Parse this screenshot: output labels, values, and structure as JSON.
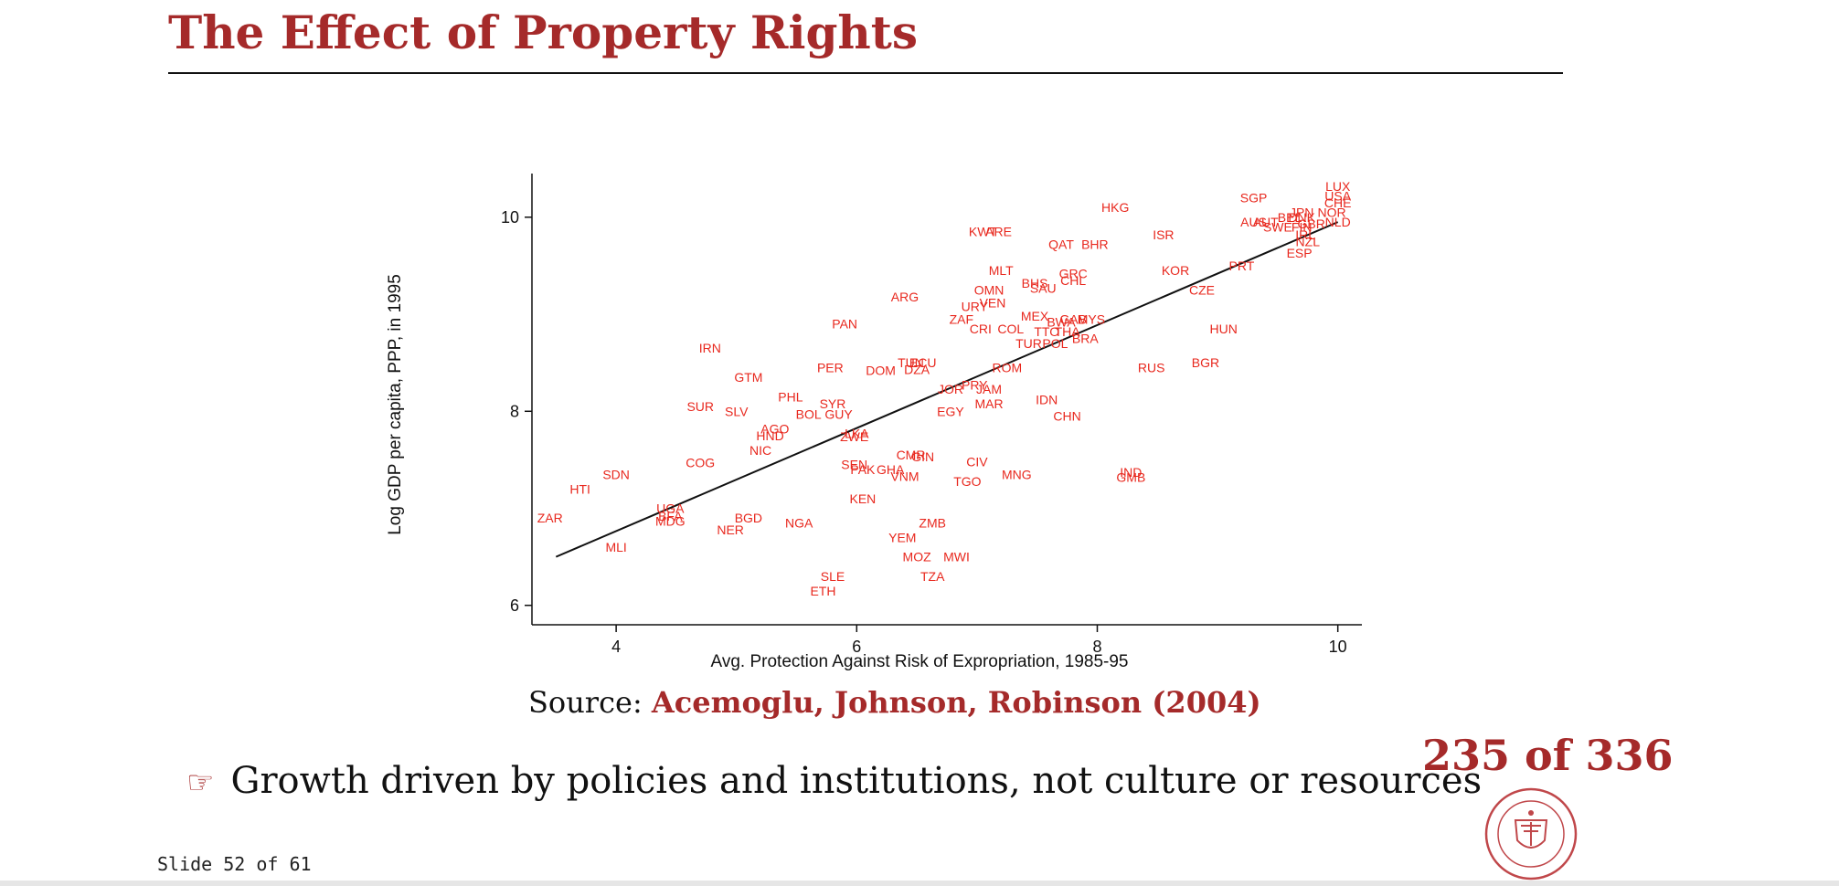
{
  "slide": {
    "title": "The Effect of Property Rights",
    "source_prefix": "Source: ",
    "source_citation": "Acemoglu, Johnson, Robinson (2004)",
    "bullet_symbol": "☞",
    "bullet_text": "Growth driven by policies and institutions, not culture or resources",
    "page_counter": "235 of 336",
    "slide_number": "Slide 52 of 61",
    "seal_icon": "carnegie-mellon-seal-icon",
    "colors": {
      "accent": "#a52a2a",
      "points": "#e8281e"
    }
  },
  "chart_data": {
    "type": "scatter",
    "xlabel": "Avg. Protection Against Risk of Expropriation, 1985-95",
    "ylabel": "Log GDP per capita, PPP, in 1995",
    "xlim": [
      3.3,
      10.2
    ],
    "ylim": [
      5.8,
      10.45
    ],
    "x_ticks": [
      4,
      6,
      8,
      10
    ],
    "y_ticks": [
      6,
      8,
      10
    ],
    "fit_line": {
      "x": [
        3.5,
        10.0
      ],
      "y": [
        6.5,
        9.95
      ]
    },
    "points": [
      {
        "label": "LUX",
        "x": 10.0,
        "y": 10.32
      },
      {
        "label": "USA",
        "x": 10.0,
        "y": 10.22
      },
      {
        "label": "CHE",
        "x": 10.0,
        "y": 10.15
      },
      {
        "label": "NOR",
        "x": 9.95,
        "y": 10.05
      },
      {
        "label": "NLD",
        "x": 10.0,
        "y": 9.95
      },
      {
        "label": "JPN",
        "x": 9.7,
        "y": 10.05
      },
      {
        "label": "DNK",
        "x": 9.7,
        "y": 10.0
      },
      {
        "label": "BEL",
        "x": 9.6,
        "y": 10.0
      },
      {
        "label": "GBR",
        "x": 9.78,
        "y": 9.93
      },
      {
        "label": "AUS",
        "x": 9.3,
        "y": 9.95
      },
      {
        "label": "SWE",
        "x": 9.5,
        "y": 9.9
      },
      {
        "label": "FIN",
        "x": 9.7,
        "y": 9.9
      },
      {
        "label": "IRL",
        "x": 9.73,
        "y": 9.82
      },
      {
        "label": "NZL",
        "x": 9.75,
        "y": 9.75
      },
      {
        "label": "ESP",
        "x": 9.68,
        "y": 9.63
      },
      {
        "label": "SGP",
        "x": 9.3,
        "y": 10.2
      },
      {
        "label": "AUT",
        "x": 9.4,
        "y": 9.95
      },
      {
        "label": "HKG",
        "x": 8.15,
        "y": 10.1
      },
      {
        "label": "ISR",
        "x": 8.55,
        "y": 9.82
      },
      {
        "label": "KWT",
        "x": 7.05,
        "y": 9.85
      },
      {
        "label": "ARE",
        "x": 7.18,
        "y": 9.85
      },
      {
        "label": "QAT",
        "x": 7.7,
        "y": 9.72
      },
      {
        "label": "BHR",
        "x": 7.98,
        "y": 9.72
      },
      {
        "label": "PRT",
        "x": 9.2,
        "y": 9.5
      },
      {
        "label": "KOR",
        "x": 8.65,
        "y": 9.45
      },
      {
        "label": "CZE",
        "x": 8.87,
        "y": 9.25
      },
      {
        "label": "MLT",
        "x": 7.2,
        "y": 9.45
      },
      {
        "label": "GRC",
        "x": 7.8,
        "y": 9.42
      },
      {
        "label": "CHL",
        "x": 7.8,
        "y": 9.35
      },
      {
        "label": "BHS",
        "x": 7.48,
        "y": 9.32
      },
      {
        "label": "SAU",
        "x": 7.55,
        "y": 9.27
      },
      {
        "label": "OMN",
        "x": 7.1,
        "y": 9.25
      },
      {
        "label": "ARG",
        "x": 6.4,
        "y": 9.18
      },
      {
        "label": "URY",
        "x": 6.98,
        "y": 9.08
      },
      {
        "label": "VEN",
        "x": 7.13,
        "y": 9.12
      },
      {
        "label": "MEX",
        "x": 7.48,
        "y": 8.98
      },
      {
        "label": "GAB",
        "x": 7.8,
        "y": 8.95
      },
      {
        "label": "MYS",
        "x": 7.95,
        "y": 8.95
      },
      {
        "label": "BWA",
        "x": 7.7,
        "y": 8.92
      },
      {
        "label": "ZAF",
        "x": 6.87,
        "y": 8.95
      },
      {
        "label": "HUN",
        "x": 9.05,
        "y": 8.85
      },
      {
        "label": "PAN",
        "x": 5.9,
        "y": 8.9
      },
      {
        "label": "CRI",
        "x": 7.03,
        "y": 8.85
      },
      {
        "label": "COL",
        "x": 7.28,
        "y": 8.85
      },
      {
        "label": "TTO",
        "x": 7.58,
        "y": 8.82
      },
      {
        "label": "THA",
        "x": 7.75,
        "y": 8.82
      },
      {
        "label": "BRA",
        "x": 7.9,
        "y": 8.75
      },
      {
        "label": "TUR",
        "x": 7.43,
        "y": 8.7
      },
      {
        "label": "POL",
        "x": 7.65,
        "y": 8.7
      },
      {
        "label": "IRN",
        "x": 4.78,
        "y": 8.65
      },
      {
        "label": "BGR",
        "x": 8.9,
        "y": 8.5
      },
      {
        "label": "RUS",
        "x": 8.45,
        "y": 8.45
      },
      {
        "label": "TUN",
        "x": 6.45,
        "y": 8.5
      },
      {
        "label": "ECU",
        "x": 6.55,
        "y": 8.5
      },
      {
        "label": "DZA",
        "x": 6.5,
        "y": 8.43
      },
      {
        "label": "ROM",
        "x": 7.25,
        "y": 8.45
      },
      {
        "label": "PER",
        "x": 5.78,
        "y": 8.45
      },
      {
        "label": "DOM",
        "x": 6.2,
        "y": 8.42
      },
      {
        "label": "GTM",
        "x": 5.1,
        "y": 8.35
      },
      {
        "label": "JOR",
        "x": 6.78,
        "y": 8.23
      },
      {
        "label": "PRY",
        "x": 6.98,
        "y": 8.27
      },
      {
        "label": "JAM",
        "x": 7.1,
        "y": 8.23
      },
      {
        "label": "PHL",
        "x": 5.45,
        "y": 8.15
      },
      {
        "label": "MAR",
        "x": 7.1,
        "y": 8.08
      },
      {
        "label": "IDN",
        "x": 7.58,
        "y": 8.12
      },
      {
        "label": "SUR",
        "x": 4.7,
        "y": 8.05
      },
      {
        "label": "SYR",
        "x": 5.8,
        "y": 8.08
      },
      {
        "label": "SLV",
        "x": 5.0,
        "y": 8.0
      },
      {
        "label": "EGY",
        "x": 6.78,
        "y": 8.0
      },
      {
        "label": "BOL",
        "x": 5.6,
        "y": 7.97
      },
      {
        "label": "GUY",
        "x": 5.85,
        "y": 7.97
      },
      {
        "label": "CHN",
        "x": 7.75,
        "y": 7.95
      },
      {
        "label": "AGO",
        "x": 5.32,
        "y": 7.82
      },
      {
        "label": "HND",
        "x": 5.28,
        "y": 7.75
      },
      {
        "label": "LKA",
        "x": 6.0,
        "y": 7.77
      },
      {
        "label": "ZWE",
        "x": 5.98,
        "y": 7.74
      },
      {
        "label": "NIC",
        "x": 5.2,
        "y": 7.6
      },
      {
        "label": "CMR",
        "x": 6.45,
        "y": 7.55
      },
      {
        "label": "GIN",
        "x": 6.55,
        "y": 7.53
      },
      {
        "label": "CIV",
        "x": 7.0,
        "y": 7.48
      },
      {
        "label": "COG",
        "x": 4.7,
        "y": 7.47
      },
      {
        "label": "SEN",
        "x": 5.98,
        "y": 7.45
      },
      {
        "label": "PAK",
        "x": 6.05,
        "y": 7.4
      },
      {
        "label": "GHA",
        "x": 6.28,
        "y": 7.4
      },
      {
        "label": "SDN",
        "x": 4.0,
        "y": 7.35
      },
      {
        "label": "VNM",
        "x": 6.4,
        "y": 7.33
      },
      {
        "label": "MNG",
        "x": 7.33,
        "y": 7.35
      },
      {
        "label": "IND",
        "x": 8.28,
        "y": 7.37
      },
      {
        "label": "GMB",
        "x": 8.28,
        "y": 7.32
      },
      {
        "label": "TGO",
        "x": 6.92,
        "y": 7.28
      },
      {
        "label": "HTI",
        "x": 3.7,
        "y": 7.2
      },
      {
        "label": "KEN",
        "x": 6.05,
        "y": 7.1
      },
      {
        "label": "UGA",
        "x": 4.45,
        "y": 7.0
      },
      {
        "label": "BFA",
        "x": 4.45,
        "y": 6.92
      },
      {
        "label": "MDG",
        "x": 4.45,
        "y": 6.87
      },
      {
        "label": "BGD",
        "x": 5.1,
        "y": 6.9
      },
      {
        "label": "ZAR",
        "x": 3.45,
        "y": 6.9
      },
      {
        "label": "NGA",
        "x": 5.52,
        "y": 6.85
      },
      {
        "label": "ZMB",
        "x": 6.63,
        "y": 6.85
      },
      {
        "label": "NER",
        "x": 4.95,
        "y": 6.78
      },
      {
        "label": "YEM",
        "x": 6.38,
        "y": 6.7
      },
      {
        "label": "MLI",
        "x": 4.0,
        "y": 6.6
      },
      {
        "label": "MOZ",
        "x": 6.5,
        "y": 6.5
      },
      {
        "label": "MWI",
        "x": 6.83,
        "y": 6.5
      },
      {
        "label": "SLE",
        "x": 5.8,
        "y": 6.3
      },
      {
        "label": "TZA",
        "x": 6.63,
        "y": 6.3
      },
      {
        "label": "ETH",
        "x": 5.72,
        "y": 6.15
      }
    ]
  }
}
